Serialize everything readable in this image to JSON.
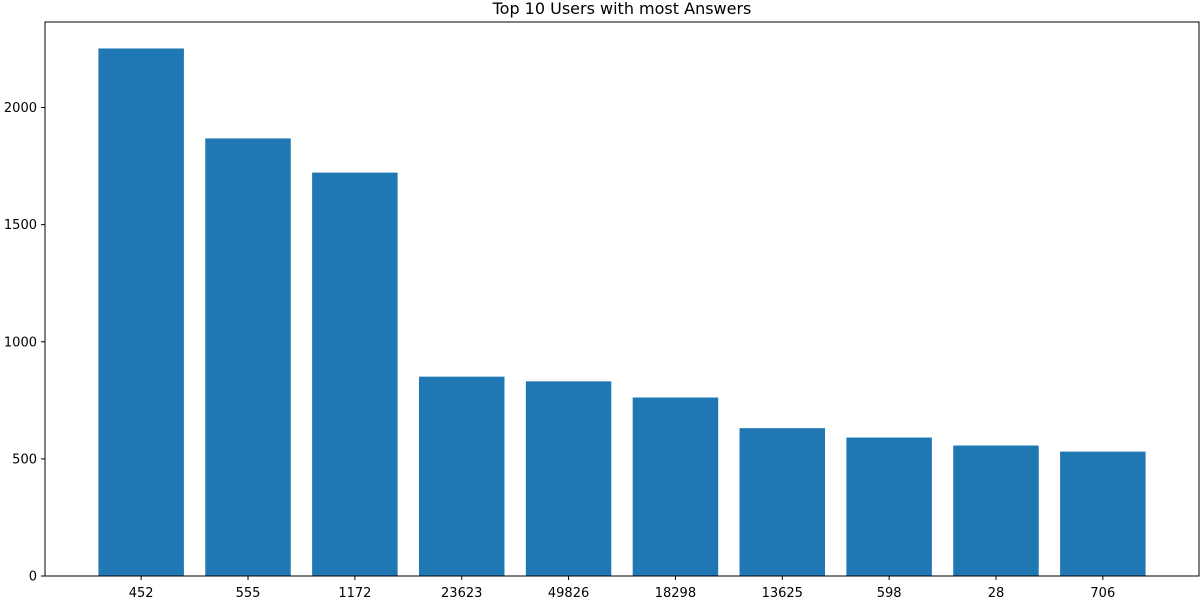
{
  "chart_data": {
    "type": "bar",
    "title": "Top 10 Users with most Answers",
    "xlabel": "",
    "ylabel": "",
    "categories": [
      "452",
      "555",
      "1172",
      "23623",
      "49826",
      "18298",
      "13625",
      "598",
      "28",
      "706"
    ],
    "values": [
      2252,
      1868,
      1722,
      851,
      831,
      762,
      631,
      591,
      557,
      531
    ],
    "ylim": [
      0,
      2365
    ],
    "yticks": [
      0,
      500,
      1000,
      1500,
      2000
    ],
    "grid": false,
    "legend": "none",
    "bar_color": "#1f77b4"
  }
}
